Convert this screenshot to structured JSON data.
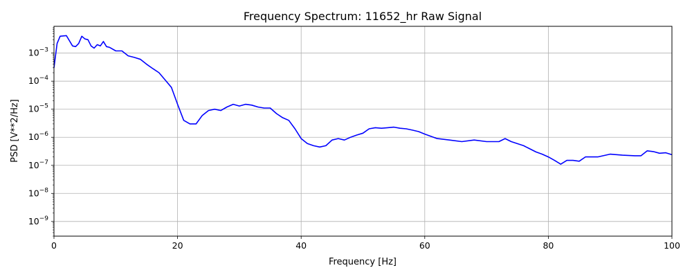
{
  "chart_data": {
    "type": "line",
    "title": "Frequency Spectrum: 11652_hr Raw Signal",
    "xlabel": "Frequency [Hz]",
    "ylabel": "PSD [V**2/Hz]",
    "xlim": [
      0,
      100
    ],
    "ylim": [
      3e-10,
      0.009
    ],
    "yscale": "log",
    "grid": true,
    "x_ticks": [
      0,
      20,
      40,
      60,
      80,
      100
    ],
    "x_tick_labels": [
      "0",
      "20",
      "40",
      "60",
      "80",
      "100"
    ],
    "y_ticks": [
      1e-09,
      1e-08,
      1e-07,
      1e-06,
      1e-05,
      0.0001,
      0.001
    ],
    "y_tick_labels": [
      {
        "base": "10",
        "exp": "−9"
      },
      {
        "base": "10",
        "exp": "−8"
      },
      {
        "base": "10",
        "exp": "−7"
      },
      {
        "base": "10",
        "exp": "−6"
      },
      {
        "base": "10",
        "exp": "−5"
      },
      {
        "base": "10",
        "exp": "−4"
      },
      {
        "base": "10",
        "exp": "−3"
      }
    ],
    "series": [
      {
        "color": "#0000ff",
        "x": [
          0,
          0.5,
          1,
          2,
          3,
          3.5,
          4,
          4.5,
          5,
          5.5,
          6,
          6.5,
          7,
          7.5,
          8,
          8.5,
          9,
          10,
          11,
          12,
          13,
          14,
          15,
          16,
          17,
          18,
          19,
          20,
          21,
          22,
          23,
          24,
          25,
          26,
          27,
          28,
          29,
          30,
          31,
          32,
          33,
          34,
          35,
          36,
          37,
          38,
          39,
          40,
          41,
          42,
          43,
          44,
          45,
          46,
          47,
          48,
          49,
          50,
          51,
          52,
          53,
          54,
          55,
          56,
          57,
          58,
          59,
          60,
          62,
          64,
          66,
          68,
          70,
          72,
          73,
          74,
          76,
          78,
          79,
          80,
          81,
          82,
          83,
          84,
          85,
          86,
          87,
          88,
          90,
          92,
          94,
          95,
          96,
          97,
          98,
          99,
          100
        ],
        "y": [
          0.0003,
          0.0022,
          0.004,
          0.0042,
          0.0018,
          0.0017,
          0.0022,
          0.004,
          0.0032,
          0.003,
          0.0018,
          0.0015,
          0.002,
          0.0018,
          0.0026,
          0.0017,
          0.0016,
          0.0012,
          0.0012,
          0.0008,
          0.0007,
          0.0006,
          0.0004,
          0.00028,
          0.0002,
          0.00011,
          6e-05,
          1.5e-05,
          4e-06,
          3e-06,
          3e-06,
          6e-06,
          9e-06,
          1e-05,
          9e-06,
          1.2e-05,
          1.5e-05,
          1.3e-05,
          1.5e-05,
          1.4e-05,
          1.2e-05,
          1.1e-05,
          1.1e-05,
          7e-06,
          5e-06,
          4e-06,
          2e-06,
          9e-07,
          6e-07,
          5e-07,
          4.5e-07,
          5e-07,
          8e-07,
          9e-07,
          8e-07,
          1e-06,
          1.2e-06,
          1.4e-06,
          2e-06,
          2.2e-06,
          2.1e-06,
          2.2e-06,
          2.3e-06,
          2.1e-06,
          2e-06,
          1.8e-06,
          1.6e-06,
          1.3e-06,
          9e-07,
          8e-07,
          7e-07,
          8e-07,
          7e-07,
          7e-07,
          9e-07,
          7e-07,
          5e-07,
          3e-07,
          2.5e-07,
          2e-07,
          1.5e-07,
          1.1e-07,
          1.5e-07,
          1.5e-07,
          1.4e-07,
          2e-07,
          2e-07,
          2e-07,
          2.5e-07,
          2.3e-07,
          2.2e-07,
          2.2e-07,
          3.3e-07,
          3.1e-07,
          2.7e-07,
          2.8e-07,
          2.4e-07
        ]
      }
    ]
  }
}
